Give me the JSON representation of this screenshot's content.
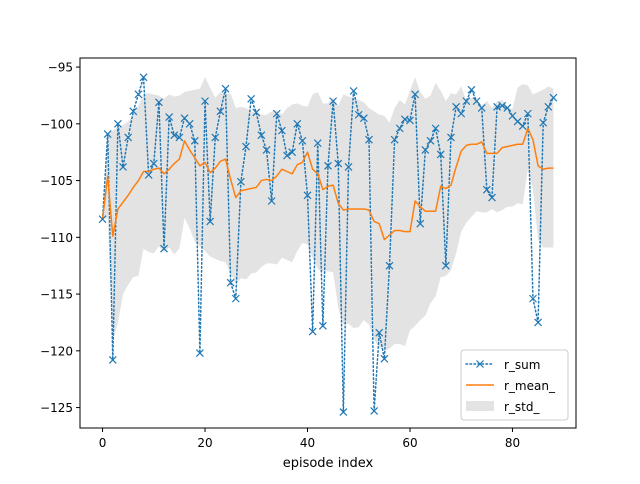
{
  "chart_data": {
    "type": "line",
    "title": "",
    "xlabel": "episode index",
    "ylabel": "",
    "xlim": [
      -4.4,
      92.4
    ],
    "ylim": [
      -126.8,
      -94.2
    ],
    "xticks": [
      0,
      20,
      40,
      60,
      80
    ],
    "yticks": [
      -95,
      -100,
      -105,
      -110,
      -115,
      -120,
      -125
    ],
    "xtick_labels": [
      "0",
      "20",
      "40",
      "60",
      "80"
    ],
    "ytick_labels": [
      "−95",
      "−100",
      "−105",
      "−110",
      "−115",
      "−120",
      "−125"
    ],
    "legend_position": "lower right",
    "legend": [
      "r_sum",
      "r_mean_",
      "r_std_"
    ],
    "colors": {
      "r_sum": "#1f77b4",
      "r_mean": "#ff7f0e",
      "r_std": "#d9d9d9"
    },
    "x": [
      0,
      1,
      2,
      3,
      4,
      5,
      6,
      7,
      8,
      9,
      10,
      11,
      12,
      13,
      14,
      15,
      16,
      17,
      18,
      19,
      20,
      21,
      22,
      23,
      24,
      25,
      26,
      27,
      28,
      29,
      30,
      31,
      32,
      33,
      34,
      35,
      36,
      37,
      38,
      39,
      40,
      41,
      42,
      43,
      44,
      45,
      46,
      47,
      48,
      49,
      50,
      51,
      52,
      53,
      54,
      55,
      56,
      57,
      58,
      59,
      60,
      61,
      62,
      63,
      64,
      65,
      66,
      67,
      68,
      69,
      70,
      71,
      72,
      73,
      74,
      75,
      76,
      77,
      78,
      79,
      80,
      81,
      82,
      83,
      84,
      85,
      86,
      87,
      88
    ],
    "series": [
      {
        "name": "r_sum",
        "values": [
          -108.4,
          -100.9,
          -120.8,
          -100.0,
          -103.8,
          -101.2,
          -98.9,
          -97.4,
          -95.9,
          -104.5,
          -103.5,
          -98.1,
          -111.0,
          -99.4,
          -101.0,
          -101.2,
          -99.5,
          -100.0,
          -101.5,
          -120.2,
          -98.0,
          -108.6,
          -101.2,
          -98.9,
          -96.9,
          -114.0,
          -115.4,
          -105.1,
          -102.0,
          -97.8,
          -99.0,
          -101.0,
          -102.3,
          -106.8,
          -99.1,
          -100.6,
          -102.8,
          -102.5,
          -100.0,
          -101.5,
          -106.3,
          -118.3,
          -101.7,
          -117.8,
          -103.7,
          -98.0,
          -103.5,
          -125.4,
          -103.8,
          -97.1,
          -99.2,
          -99.5,
          -101.4,
          -125.3,
          -118.4,
          -120.7,
          -112.5,
          -101.4,
          -100.4,
          -99.6,
          -99.7,
          -97.4,
          -108.8,
          -102.3,
          -101.5,
          -100.4,
          -102.7,
          -112.5,
          -101.2,
          -98.5,
          -99.1,
          -98.0,
          -97.0,
          -98.0,
          -98.6,
          -105.8,
          -106.5,
          -98.5,
          -98.4,
          -98.6,
          -99.3,
          -99.8,
          -100.2,
          -99.1,
          -115.4,
          -117.5,
          -99.9,
          -98.5,
          -97.7
        ]
      },
      {
        "name": "r_mean_",
        "values": [
          -108.4,
          -104.6,
          -109.9,
          -107.5,
          -106.9,
          -106.3,
          -105.6,
          -105.0,
          -104.2,
          -104.2,
          -104.0,
          -103.9,
          -104.4,
          -104.0,
          -103.5,
          -103.1,
          -101.5,
          -102.3,
          -103.0,
          -103.7,
          -103.4,
          -104.3,
          -103.9,
          -103.3,
          -103.1,
          -104.9,
          -106.5,
          -105.9,
          -105.8,
          -105.7,
          -105.6,
          -105.0,
          -104.9,
          -105.0,
          -104.6,
          -104.0,
          -104.2,
          -104.4,
          -103.6,
          -103.4,
          -102.5,
          -104.0,
          -104.4,
          -105.8,
          -105.5,
          -105.4,
          -107.0,
          -107.6,
          -107.5,
          -107.5,
          -107.5,
          -107.5,
          -107.6,
          -108.6,
          -108.8,
          -110.2,
          -109.8,
          -109.4,
          -109.4,
          -109.5,
          -109.5,
          -106.8,
          -107.3,
          -107.7,
          -107.7,
          -107.7,
          -105.5,
          -105.7,
          -105.4,
          -103.8,
          -102.4,
          -101.9,
          -101.8,
          -101.8,
          -101.6,
          -102.6,
          -102.6,
          -102.6,
          -102.1,
          -102.0,
          -101.9,
          -101.8,
          -101.8,
          -100.4,
          -101.4,
          -103.7,
          -104.0,
          -103.9,
          -103.9
        ]
      },
      {
        "name": "r_std_",
        "upper": [
          -108.4,
          -100.9,
          -100.6,
          -100.3,
          -100.1,
          -99.8,
          -99.2,
          -98.4,
          -97.4,
          -97.3,
          -97.4,
          -97.5,
          -97.8,
          -97.4,
          -97.6,
          -97.5,
          -97.2,
          -97.1,
          -97.0,
          -96.9,
          -95.9,
          -96.8,
          -97.7,
          -97.2,
          -97.4,
          -97.3,
          -98.6,
          -98.5,
          -98.6,
          -98.9,
          -99.0,
          -99.2,
          -99.2,
          -98.9,
          -98.8,
          -99.2,
          -98.6,
          -98.3,
          -98.2,
          -98.4,
          -98.5,
          -97.4,
          -97.2,
          -98.2,
          -98.2,
          -97.7,
          -98.4,
          -97.4,
          -97.6,
          -97.7,
          -97.9,
          -98.1,
          -98.6,
          -98.9,
          -99.2,
          -99.3,
          -99.9,
          -98.6,
          -97.9,
          -98.3,
          -97.1,
          -95.9,
          -97.2,
          -97.8,
          -97.5,
          -96.4,
          -97.1,
          -98.0,
          -97.3,
          -97.4,
          -96.7,
          -98.0,
          -97.7,
          -97.8,
          -98.4,
          -98.0,
          -98.6,
          -98.0,
          -97.9,
          -98.5,
          -98.7,
          -96.8,
          -96.5,
          -96.6,
          -97.4,
          -97.2,
          -97.0,
          -96.7,
          -96.9
        ],
        "lower": [
          -108.4,
          -108.3,
          -119.2,
          -117.5,
          -115.0,
          -114.2,
          -113.5,
          -113.4,
          -111.0,
          -111.3,
          -111.4,
          -110.8,
          -111.3,
          -110.9,
          -111.5,
          -111.0,
          -108.3,
          -109.2,
          -110.4,
          -110.8,
          -111.2,
          -111.7,
          -111.9,
          -112.1,
          -112.2,
          -113.2,
          -114.1,
          -113.6,
          -113.7,
          -113.2,
          -113.1,
          -112.6,
          -112.3,
          -112.3,
          -112.4,
          -111.8,
          -112.0,
          -112.2,
          -111.2,
          -110.5,
          -110.6,
          -111.8,
          -112.8,
          -113.0,
          -113.0,
          -113.1,
          -116.2,
          -117.7,
          -117.6,
          -118.0,
          -117.9,
          -117.3,
          -117.7,
          -119.0,
          -119.7,
          -120.0,
          -119.8,
          -119.4,
          -119.4,
          -119.6,
          -118.2,
          -117.8,
          -117.3,
          -116.9,
          -115.8,
          -115.2,
          -113.5,
          -113.4,
          -112.9,
          -111.4,
          -109.5,
          -108.7,
          -108.2,
          -107.7,
          -107.8,
          -107.8,
          -107.5,
          -107.8,
          -107.6,
          -107.3,
          -107.3,
          -107.0,
          -107.1,
          -104.0,
          -105.8,
          -110.2,
          -110.9,
          -110.9,
          -110.9
        ]
      }
    ]
  }
}
